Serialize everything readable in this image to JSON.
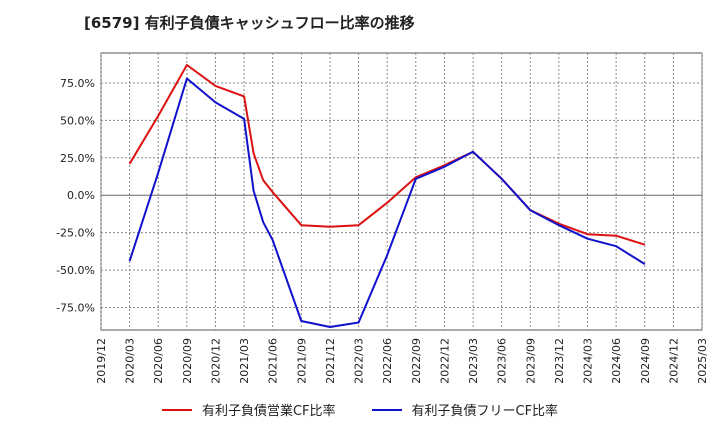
{
  "title": "[6579]  有利子負債キャッシュフロー比率の推移",
  "chart_data": {
    "type": "line",
    "x": [
      "2020/03",
      "2020/06",
      "2020/09",
      "2020/12",
      "2021/03",
      "2021/04",
      "2021/05",
      "2021/06",
      "2021/09",
      "2021/12",
      "2022/03",
      "2022/06",
      "2022/09",
      "2022/12",
      "2023/03",
      "2023/06",
      "2023/09",
      "2023/12",
      "2024/03",
      "2024/06",
      "2024/09"
    ],
    "x_ticks": [
      "2019/12",
      "2020/03",
      "2020/06",
      "2020/09",
      "2020/12",
      "2021/03",
      "2021/06",
      "2021/09",
      "2021/12",
      "2022/03",
      "2022/06",
      "2022/09",
      "2022/12",
      "2023/03",
      "2023/06",
      "2023/09",
      "2023/12",
      "2024/03",
      "2024/06",
      "2024/09",
      "2024/12",
      "2025/03"
    ],
    "y_ticks": [
      "75.0%",
      "50.0%",
      "25.0%",
      "0.0%",
      "-25.0%",
      "-50.0%",
      "-75.0%"
    ],
    "ylim": [
      -90,
      95
    ],
    "grid": true,
    "legend_position": "bottom",
    "series": [
      {
        "name": "有利子負債営業CF比率",
        "color": "#dd1111",
        "values": [
          21,
          53,
          87,
          73,
          66,
          28,
          10,
          2,
          -20,
          -21,
          -20,
          -5,
          12,
          20,
          29,
          11,
          -10,
          -19,
          -26,
          -27,
          -33
        ]
      },
      {
        "name": "有利子負債フリーCF比率",
        "color": "#1111cc",
        "values": [
          -44,
          15,
          78,
          62,
          51,
          3,
          -18,
          -30,
          -84,
          -88,
          -85,
          -40,
          11,
          19,
          29,
          11,
          -10,
          -20,
          -29,
          -34,
          -46
        ]
      }
    ]
  }
}
